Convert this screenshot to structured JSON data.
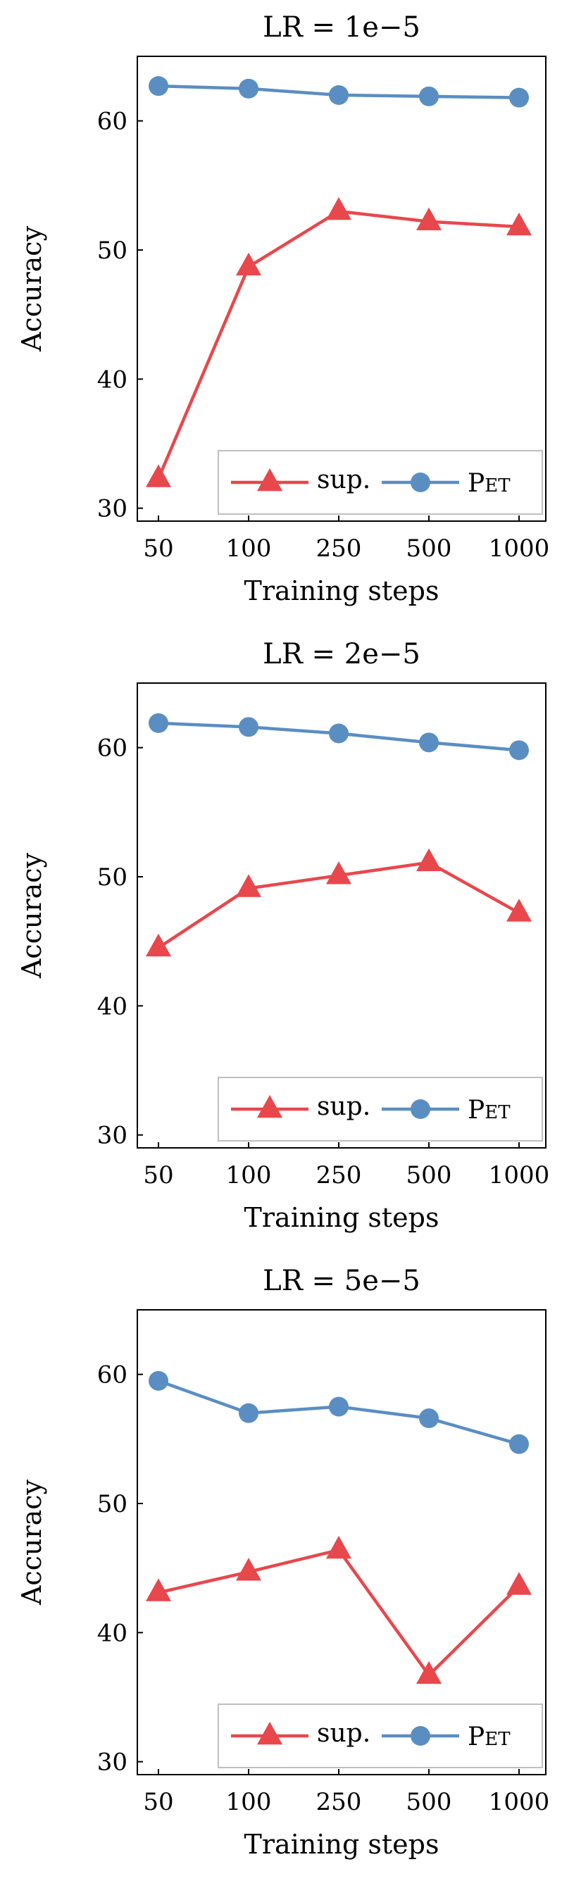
{
  "chart_data": [
    {
      "type": "line",
      "title": "LR = 1e−5",
      "xlabel": "Training steps",
      "ylabel": "Accuracy",
      "categories": [
        "50",
        "100",
        "250",
        "500",
        "1000"
      ],
      "ylim": [
        29,
        65
      ],
      "yticks": [
        30,
        40,
        50,
        60
      ],
      "legend_position": "bottom-right",
      "series": [
        {
          "name": "sup.",
          "marker": "triangle",
          "color": "#e8474c",
          "values": [
            32.3,
            48.7,
            53.0,
            52.2,
            51.8
          ]
        },
        {
          "name": "Pet",
          "marker": "circle",
          "color": "#5a8ec2",
          "values": [
            62.7,
            62.5,
            62.0,
            61.9,
            61.8
          ]
        }
      ]
    },
    {
      "type": "line",
      "title": "LR = 2e−5",
      "xlabel": "Training steps",
      "ylabel": "Accuracy",
      "categories": [
        "50",
        "100",
        "250",
        "500",
        "1000"
      ],
      "ylim": [
        29,
        65
      ],
      "yticks": [
        30,
        40,
        50,
        60
      ],
      "legend_position": "bottom-right",
      "series": [
        {
          "name": "sup.",
          "marker": "triangle",
          "color": "#e8474c",
          "values": [
            44.5,
            49.1,
            50.1,
            51.1,
            47.2
          ]
        },
        {
          "name": "Pet",
          "marker": "circle",
          "color": "#5a8ec2",
          "values": [
            61.9,
            61.6,
            61.1,
            60.4,
            59.8
          ]
        }
      ]
    },
    {
      "type": "line",
      "title": "LR = 5e−5",
      "xlabel": "Training steps",
      "ylabel": "Accuracy",
      "categories": [
        "50",
        "100",
        "250",
        "500",
        "1000"
      ],
      "ylim": [
        29,
        65
      ],
      "yticks": [
        30,
        40,
        50,
        60
      ],
      "legend_position": "bottom-right",
      "series": [
        {
          "name": "sup.",
          "marker": "triangle",
          "color": "#e8474c",
          "values": [
            43.1,
            44.7,
            46.4,
            36.7,
            43.6
          ]
        },
        {
          "name": "Pet",
          "marker": "circle",
          "color": "#5a8ec2",
          "values": [
            59.5,
            57.0,
            57.5,
            56.6,
            54.6
          ]
        }
      ]
    }
  ]
}
